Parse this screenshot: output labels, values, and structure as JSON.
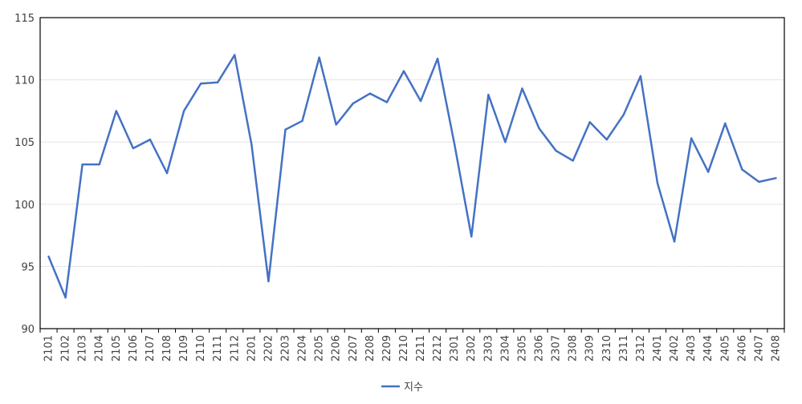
{
  "chart_data": {
    "type": "line",
    "categories": [
      "2101",
      "2102",
      "2103",
      "2104",
      "2105",
      "2106",
      "2107",
      "2108",
      "2109",
      "2110",
      "2111",
      "2112",
      "2201",
      "2202",
      "2203",
      "2204",
      "2205",
      "2206",
      "2207",
      "2208",
      "2209",
      "2210",
      "2211",
      "2212",
      "2301",
      "2302",
      "2303",
      "2304",
      "2305",
      "2306",
      "2307",
      "2308",
      "2309",
      "2310",
      "2311",
      "2312",
      "2401",
      "2402",
      "2403",
      "2404",
      "2405",
      "2406",
      "2407",
      "2408"
    ],
    "series": [
      {
        "name": "지수",
        "color": "#4472C4",
        "values": [
          95.8,
          92.5,
          103.2,
          103.2,
          107.5,
          104.5,
          105.2,
          102.5,
          107.5,
          109.7,
          109.8,
          112.0,
          104.8,
          93.8,
          106.0,
          106.7,
          111.8,
          106.4,
          108.1,
          108.9,
          108.2,
          110.7,
          108.3,
          111.7,
          104.8,
          97.4,
          108.8,
          105.0,
          109.3,
          106.1,
          104.3,
          103.5,
          106.6,
          105.2,
          107.2,
          110.3,
          101.7,
          97.0,
          105.3,
          102.6,
          106.5,
          102.8,
          101.8,
          102.1
        ]
      }
    ],
    "yticks": [
      "90",
      "95",
      "100",
      "105",
      "110",
      "115"
    ],
    "ylim": [
      90,
      115
    ],
    "grid": "horizontal",
    "legend": "bottom-center"
  }
}
